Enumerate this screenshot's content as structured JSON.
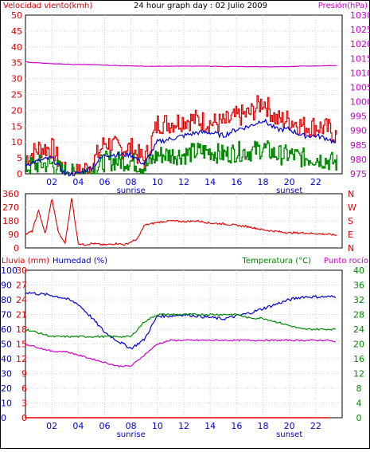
{
  "colors": {
    "red": "#dd0000",
    "green": "#008800",
    "blue": "#0000cc",
    "magenta": "#cc00cc",
    "grid": "#d0d0d0",
    "frame": "#000000"
  },
  "chart_data": [
    {
      "type": "line",
      "title": "24 hour graph day : 02 Julio 2009",
      "ylabel_left": "Velocidad viento(kmh)",
      "ylabel_right": "Presión(hPa)",
      "y_ticks_left": [
        "50",
        "45",
        "40",
        "35",
        "30",
        "25",
        "20",
        "15",
        "10",
        "5",
        "0"
      ],
      "y_ticks_right": [
        "1030",
        "1025",
        "1020",
        "1015",
        "1010",
        "1005",
        "1000",
        "995",
        "990",
        "985",
        "980",
        "975"
      ],
      "x_ticks": [
        "02",
        "04",
        "06",
        "08",
        "10",
        "12",
        "14",
        "16",
        "18",
        "20",
        "22"
      ],
      "x_annotations": [
        {
          "at": "08",
          "label": "sunrise"
        },
        {
          "at": "20",
          "label": "sunset"
        }
      ],
      "ylim_left": [
        0,
        50
      ],
      "ylim_right": [
        975,
        1030
      ],
      "x_hours": [
        0,
        1,
        2,
        3,
        4,
        5,
        6,
        7,
        8,
        9,
        10,
        11,
        12,
        13,
        14,
        15,
        16,
        17,
        18,
        19,
        20,
        21,
        22,
        23,
        24
      ],
      "series": [
        {
          "values": [
            5,
            8,
            8,
            0,
            0,
            3,
            10,
            8,
            8,
            4,
            16,
            16,
            17,
            17,
            16,
            16,
            18,
            19,
            23,
            17,
            17,
            15,
            15,
            14,
            10
          ]
        },
        {
          "values": [
            3,
            4,
            5,
            0,
            0,
            2,
            6,
            6,
            6,
            3,
            10,
            11,
            12,
            13,
            13,
            12,
            14,
            15,
            17,
            14,
            14,
            12,
            12,
            11,
            8
          ]
        },
        {
          "values": [
            2,
            3,
            3,
            0,
            0,
            1,
            4,
            4,
            4,
            2,
            6,
            6,
            6,
            7,
            7,
            6,
            7,
            7,
            8,
            6,
            6,
            5,
            5,
            4,
            3
          ]
        },
        {
          "values": [
            1013.8,
            1013.4,
            1013.2,
            1013.0,
            1012.9,
            1012.8,
            1012.7,
            1012.5,
            1012.4,
            1012.3,
            1012.3,
            1012.3,
            1012.3,
            1012.3,
            1012.3,
            1012.2,
            1012.2,
            1012.1,
            1012.1,
            1012.1,
            1012.2,
            1012.3,
            1012.4,
            1012.5,
            1012.6
          ]
        }
      ]
    },
    {
      "type": "line",
      "ylabel_right": "N W S E N",
      "y_ticks_left": [
        "360",
        "270",
        "180",
        "90",
        "0"
      ],
      "y_ticks_right": [
        "N",
        "W",
        "S",
        "E",
        "N"
      ],
      "x_ticks": [
        "02",
        "04",
        "06",
        "08",
        "10",
        "12",
        "14",
        "16",
        "18",
        "20",
        "22"
      ],
      "ylim": [
        0,
        360
      ],
      "x_hours": [
        0,
        0.5,
        1,
        1.5,
        2,
        2.5,
        3,
        3.5,
        4,
        4.5,
        5,
        5.5,
        6,
        6.5,
        7,
        7.5,
        8,
        8.5,
        9,
        10,
        11,
        12,
        13,
        14,
        15,
        16,
        17,
        18,
        19,
        20,
        21,
        22,
        23,
        24
      ],
      "series": [
        {
          "values": [
            90,
            110,
            250,
            90,
            330,
            100,
            30,
            330,
            30,
            20,
            30,
            25,
            20,
            25,
            30,
            20,
            40,
            60,
            150,
            170,
            180,
            175,
            180,
            165,
            160,
            150,
            140,
            120,
            110,
            100,
            100,
            95,
            90,
            80
          ]
        }
      ]
    },
    {
      "type": "line",
      "ylabel_left": "Lluvia (mm)",
      "ylabel_left2": "Humedad (%)",
      "ylabel_right": "Temperatura (°C)",
      "ylabel_right2": "Punto rocío",
      "y_ticks_left": [
        "30",
        "27",
        "24",
        "21",
        "18",
        "15",
        "12",
        "9",
        "6",
        "3",
        "0"
      ],
      "y_ticks_left2": [
        "100",
        "90",
        "80",
        "70",
        "60",
        "50",
        "40",
        "30",
        "20",
        "10",
        "0"
      ],
      "y_ticks_right": [
        "40",
        "36",
        "32",
        "28",
        "24",
        "20",
        "16",
        "12",
        "8",
        "4",
        "0"
      ],
      "x_ticks": [
        "02",
        "04",
        "06",
        "08",
        "10",
        "12",
        "14",
        "16",
        "18",
        "20",
        "22"
      ],
      "x_annotations": [
        {
          "at": "08",
          "label": "sunrise"
        },
        {
          "at": "20",
          "label": "sunset"
        }
      ],
      "ylim_humidity": [
        0,
        100
      ],
      "ylim_temperature": [
        0,
        40
      ],
      "x_hours": [
        0,
        1,
        2,
        3,
        4,
        5,
        6,
        7,
        8,
        9,
        10,
        11,
        12,
        13,
        14,
        15,
        16,
        17,
        18,
        19,
        20,
        21,
        22,
        23,
        24
      ],
      "series": [
        {
          "values": [
            85,
            84,
            83,
            81,
            77,
            68,
            58,
            52,
            47,
            53,
            69,
            69,
            70,
            69,
            68,
            67,
            69,
            71,
            74,
            77,
            80,
            82,
            82,
            82,
            82
          ]
        },
        {
          "values": [
            24,
            23,
            22,
            22,
            22,
            22,
            22,
            22,
            22,
            26,
            28,
            28,
            28,
            28,
            28,
            28,
            28,
            27,
            27,
            26,
            25,
            24,
            24,
            24,
            24
          ]
        },
        {
          "values": [
            20,
            19,
            18,
            18,
            17,
            16,
            15,
            14,
            14,
            17,
            20,
            21,
            21,
            21,
            21,
            21,
            21,
            21,
            21,
            21,
            21,
            21,
            21,
            21,
            20
          ]
        },
        {
          "values": [
            0,
            0,
            0,
            0,
            0,
            0,
            0,
            0,
            0,
            0,
            0,
            0,
            0,
            0,
            0,
            0,
            0,
            0,
            0,
            0,
            0,
            0,
            0,
            0,
            0
          ]
        }
      ]
    }
  ]
}
